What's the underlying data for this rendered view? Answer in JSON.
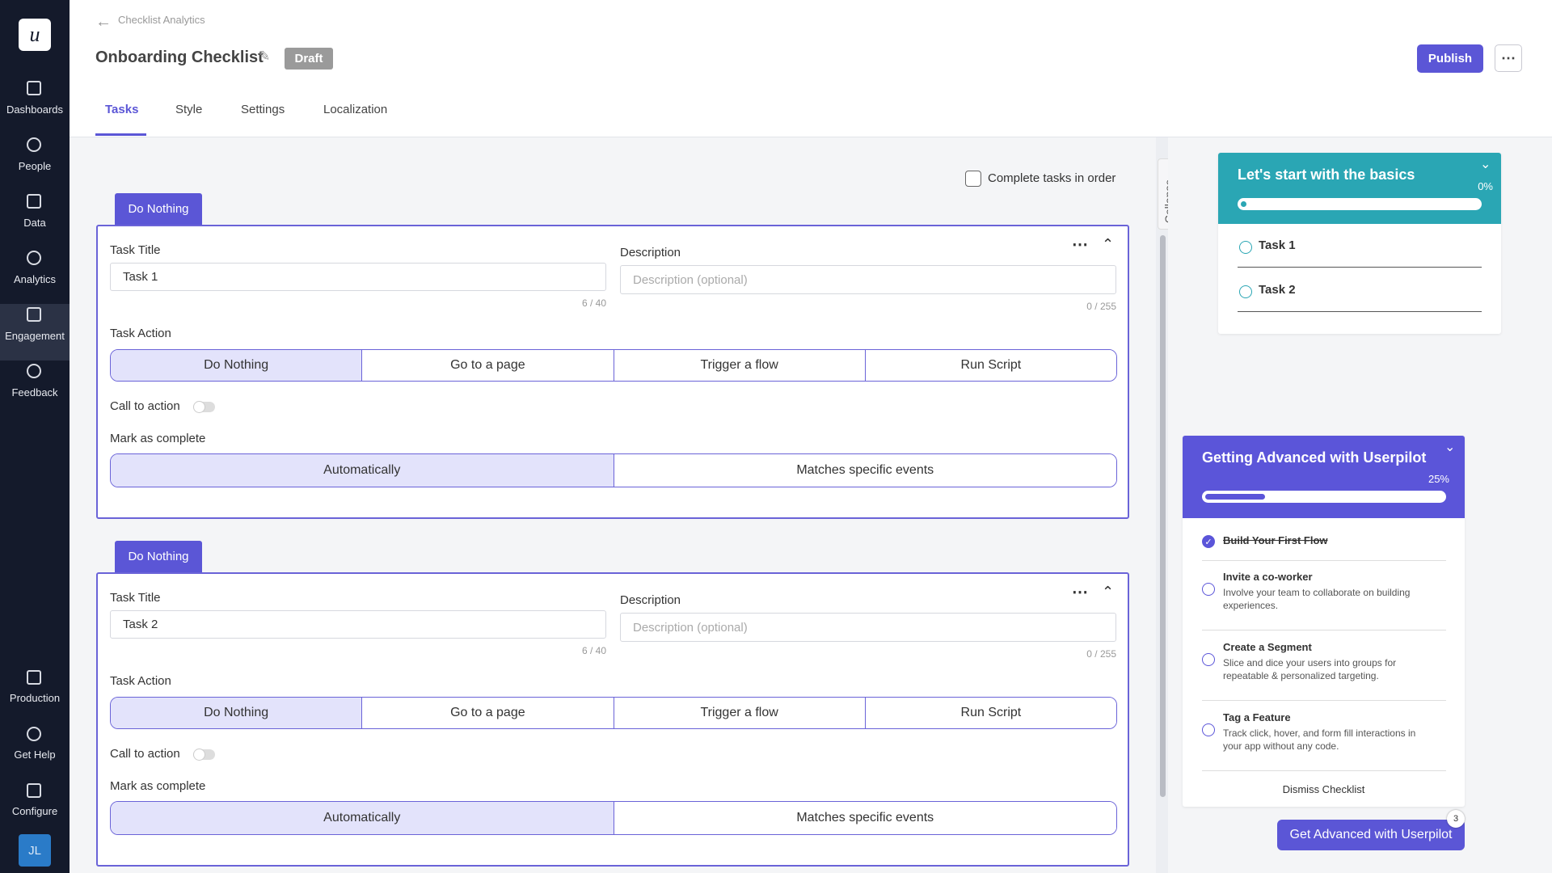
{
  "sidebar": {
    "logo": "u",
    "items": [
      "Dashboards",
      "People",
      "Data",
      "Analytics",
      "Engagement",
      "Feedback"
    ],
    "bottom": [
      "Production",
      "Get Help",
      "Configure"
    ],
    "avatar": "JL"
  },
  "header": {
    "back": "Checklist Analytics",
    "title": "Onboarding Checklist",
    "badge": "Draft",
    "publish": "Publish",
    "tabs": [
      "Tasks",
      "Style",
      "Settings",
      "Localization"
    ]
  },
  "editor": {
    "order_option": "Complete tasks in order",
    "tasks": [
      {
        "tag": "Do Nothing",
        "title_label": "Task Title",
        "title_value": "Task 1",
        "title_count": "6 / 40",
        "desc_label": "Description",
        "desc_placeholder": "Description (optional)",
        "desc_count": "0 / 255",
        "action_label": "Task Action",
        "actions": [
          "Do Nothing",
          "Go to a page",
          "Trigger a flow",
          "Run Script"
        ],
        "cta_label": "Call to action",
        "complete_label": "Mark as complete",
        "complete_options": [
          "Automatically",
          "Matches specific events"
        ]
      },
      {
        "tag": "Do Nothing",
        "title_label": "Task Title",
        "title_value": "Task 2",
        "title_count": "6 / 40",
        "desc_label": "Description",
        "desc_placeholder": "Description (optional)",
        "desc_count": "0 / 255",
        "action_label": "Task Action",
        "actions": [
          "Do Nothing",
          "Go to a page",
          "Trigger a flow",
          "Run Script"
        ],
        "cta_label": "Call to action",
        "complete_label": "Mark as complete",
        "complete_options": [
          "Automatically",
          "Matches specific events"
        ]
      }
    ]
  },
  "preview": {
    "collapse": "Collapse",
    "checklist1": {
      "title": "Let's start with the basics",
      "progress": "0%",
      "tasks": [
        "Task 1",
        "Task 2"
      ]
    },
    "checklist2": {
      "title": "Getting Advanced with Userpilot",
      "progress": "25%",
      "tasks": [
        {
          "title": "Build Your First Flow",
          "done": true
        },
        {
          "title": "Invite a co-worker",
          "desc": "Involve your team to collaborate on building experiences.",
          "done": false
        },
        {
          "title": "Create a Segment",
          "desc": "Slice and dice your users into groups for repeatable & personalized targeting.",
          "done": false
        },
        {
          "title": "Tag a Feature",
          "desc": "Track click, hover, and form fill interactions in your app without any code.",
          "done": false
        }
      ],
      "dismiss": "Dismiss Checklist"
    },
    "launcher": {
      "label": "Get Advanced with Userpilot",
      "badge": "3"
    }
  }
}
